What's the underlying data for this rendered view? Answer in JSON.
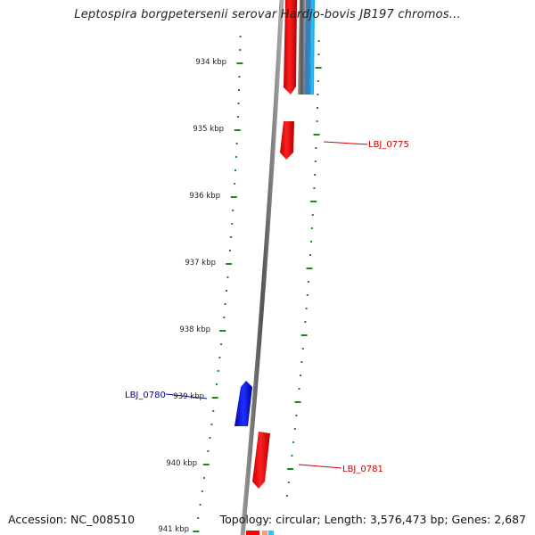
{
  "title": "Leptospira borgpetersenii serovar Hardjo-bovis JB197 chromos...",
  "accession": "Accession: NC_008510",
  "summary": "Topology: circular; Length: 3,576,473 bp; Genes: 2,687",
  "ticks": [
    "934 kbp",
    "935 kbp",
    "936 kbp",
    "937 kbp",
    "938 kbp",
    "939 kbp",
    "940 kbp",
    "941 kbp"
  ],
  "gene_labels": {
    "lbj0775": "LBJ_0775",
    "lbj0780": "LBJ_0780",
    "lbj0781": "LBJ_0781"
  },
  "colors": {
    "forward": "#ff0000",
    "reverse": "#0000ff",
    "backbone": "#808080",
    "tick": "#1a8a1a",
    "label_forward": "#cc0000",
    "label_reverse": "#0000aa"
  }
}
